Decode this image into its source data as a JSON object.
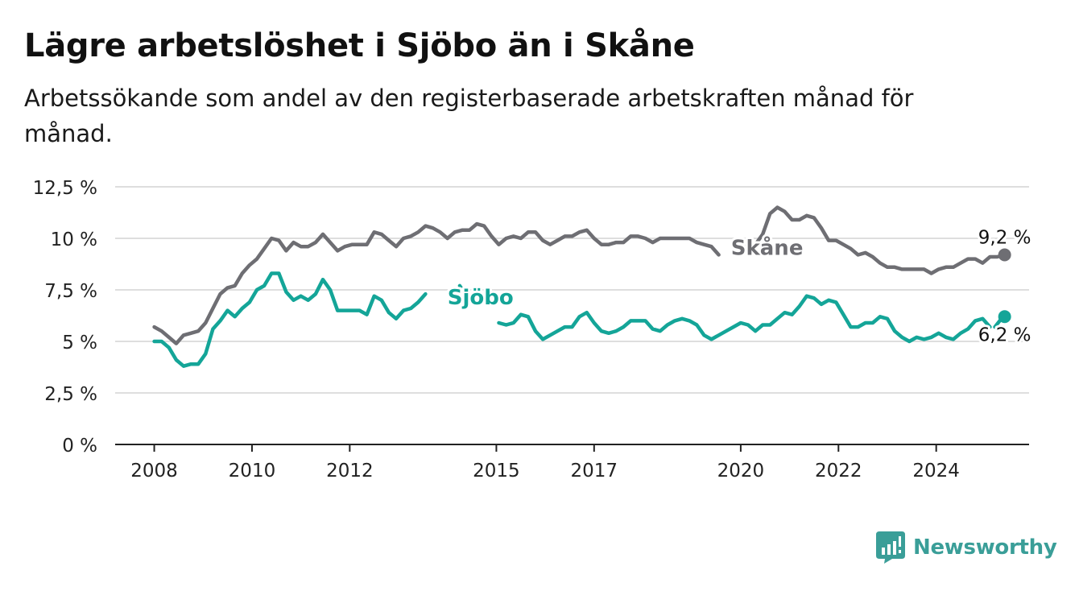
{
  "title": "Lägre arbetslöshet i Sjöbo än i Skåne",
  "subtitle": "Arbetssökande som andel av den registerbaserade arbetskraften månad för månad.",
  "brand": {
    "name": "Newsworthy",
    "icon": "newsworthy-chart-icon",
    "color": "#3a9e98"
  },
  "chart_data": {
    "type": "line",
    "ylim": [
      0,
      12.5
    ],
    "yticks": [
      {
        "value": 0,
        "label": "0 %"
      },
      {
        "value": 2.5,
        "label": "2,5 %"
      },
      {
        "value": 5,
        "label": "5 %"
      },
      {
        "value": 7.5,
        "label": "7,5 %"
      },
      {
        "value": 10,
        "label": "10 %"
      },
      {
        "value": 12.5,
        "label": "12,5 %"
      }
    ],
    "xlim": [
      2007.2,
      2025.9
    ],
    "xticks": [
      {
        "value": 2008,
        "label": "2008"
      },
      {
        "value": 2010,
        "label": "2010"
      },
      {
        "value": 2012,
        "label": "2012"
      },
      {
        "value": 2015,
        "label": "2015"
      },
      {
        "value": 2017,
        "label": "2017"
      },
      {
        "value": 2020,
        "label": "2020"
      },
      {
        "value": 2022,
        "label": "2022"
      },
      {
        "value": 2024,
        "label": "2024"
      }
    ],
    "grid": true,
    "series": [
      {
        "name": "Skåne",
        "color": "#6e6e73",
        "last_label": "9,2 %",
        "points": [
          [
            2008.0,
            5.7
          ],
          [
            2008.15,
            5.5
          ],
          [
            2008.3,
            5.2
          ],
          [
            2008.45,
            4.9
          ],
          [
            2008.6,
            5.3
          ],
          [
            2008.75,
            5.4
          ],
          [
            2008.9,
            5.5
          ],
          [
            2009.05,
            5.9
          ],
          [
            2009.2,
            6.6
          ],
          [
            2009.35,
            7.3
          ],
          [
            2009.5,
            7.6
          ],
          [
            2009.65,
            7.7
          ],
          [
            2009.8,
            8.3
          ],
          [
            2009.95,
            8.7
          ],
          [
            2010.1,
            9.0
          ],
          [
            2010.25,
            9.5
          ],
          [
            2010.4,
            10.0
          ],
          [
            2010.55,
            9.9
          ],
          [
            2010.7,
            9.4
          ],
          [
            2010.85,
            9.8
          ],
          [
            2011.0,
            9.6
          ],
          [
            2011.15,
            9.6
          ],
          [
            2011.3,
            9.8
          ],
          [
            2011.45,
            10.2
          ],
          [
            2011.6,
            9.8
          ],
          [
            2011.75,
            9.4
          ],
          [
            2011.9,
            9.6
          ],
          [
            2012.05,
            9.7
          ],
          [
            2012.2,
            9.7
          ],
          [
            2012.35,
            9.7
          ],
          [
            2012.5,
            10.3
          ],
          [
            2012.65,
            10.2
          ],
          [
            2012.8,
            9.9
          ],
          [
            2012.95,
            9.6
          ],
          [
            2013.1,
            10.0
          ],
          [
            2013.25,
            10.1
          ],
          [
            2013.4,
            10.3
          ],
          [
            2013.55,
            10.6
          ],
          [
            2013.7,
            10.5
          ],
          [
            2013.85,
            10.3
          ],
          [
            2014.0,
            10.0
          ],
          [
            2014.15,
            10.3
          ],
          [
            2014.3,
            10.4
          ],
          [
            2014.45,
            10.4
          ],
          [
            2014.6,
            10.7
          ],
          [
            2014.75,
            10.6
          ],
          [
            2014.9,
            10.1
          ],
          [
            2015.05,
            9.7
          ],
          [
            2015.2,
            10.0
          ],
          [
            2015.35,
            10.1
          ],
          [
            2015.5,
            10.0
          ],
          [
            2015.65,
            10.3
          ],
          [
            2015.8,
            10.3
          ],
          [
            2015.95,
            9.9
          ],
          [
            2016.1,
            9.7
          ],
          [
            2016.25,
            9.9
          ],
          [
            2016.4,
            10.1
          ],
          [
            2016.55,
            10.1
          ],
          [
            2016.7,
            10.3
          ],
          [
            2016.85,
            10.4
          ],
          [
            2017.0,
            10.0
          ],
          [
            2017.15,
            9.7
          ],
          [
            2017.3,
            9.7
          ],
          [
            2017.45,
            9.8
          ],
          [
            2017.6,
            9.8
          ],
          [
            2017.75,
            10.1
          ],
          [
            2017.9,
            10.1
          ],
          [
            2018.05,
            10.0
          ],
          [
            2018.2,
            9.8
          ],
          [
            2018.35,
            10.0
          ],
          [
            2018.5,
            10.0
          ],
          [
            2018.65,
            10.0
          ],
          [
            2018.8,
            10.0
          ],
          [
            2018.95,
            10.0
          ],
          [
            2019.1,
            9.8
          ],
          [
            2019.25,
            9.7
          ],
          [
            2019.4,
            9.6
          ],
          [
            2019.55,
            9.2
          ],
          null,
          [
            2020.0,
            9.7
          ],
          [
            2020.15,
            9.8
          ],
          [
            2020.3,
            9.7
          ],
          [
            2020.45,
            10.2
          ],
          [
            2020.6,
            11.2
          ],
          [
            2020.75,
            11.5
          ],
          [
            2020.9,
            11.3
          ],
          [
            2021.05,
            10.9
          ],
          [
            2021.2,
            10.9
          ],
          [
            2021.35,
            11.1
          ],
          [
            2021.5,
            11.0
          ],
          [
            2021.65,
            10.5
          ],
          [
            2021.8,
            9.9
          ],
          [
            2021.95,
            9.9
          ],
          [
            2022.1,
            9.7
          ],
          [
            2022.25,
            9.5
          ],
          [
            2022.4,
            9.2
          ],
          [
            2022.55,
            9.3
          ],
          [
            2022.7,
            9.1
          ],
          [
            2022.85,
            8.8
          ],
          [
            2023.0,
            8.6
          ],
          [
            2023.15,
            8.6
          ],
          [
            2023.3,
            8.5
          ],
          [
            2023.45,
            8.5
          ],
          [
            2023.6,
            8.5
          ],
          [
            2023.75,
            8.5
          ],
          [
            2023.9,
            8.3
          ],
          [
            2024.05,
            8.5
          ],
          [
            2024.2,
            8.6
          ],
          [
            2024.35,
            8.6
          ],
          [
            2024.5,
            8.8
          ],
          [
            2024.65,
            9.0
          ],
          [
            2024.8,
            9.0
          ],
          [
            2024.95,
            8.8
          ],
          [
            2025.1,
            9.1
          ],
          [
            2025.25,
            9.1
          ],
          [
            2025.4,
            9.2
          ]
        ]
      },
      {
        "name": "Sjöbo",
        "color": "#14a598",
        "last_label": "6,2 %",
        "points": [
          [
            2008.0,
            5.0
          ],
          [
            2008.15,
            5.0
          ],
          [
            2008.3,
            4.7
          ],
          [
            2008.45,
            4.1
          ],
          [
            2008.6,
            3.8
          ],
          [
            2008.75,
            3.9
          ],
          [
            2008.9,
            3.9
          ],
          [
            2009.05,
            4.4
          ],
          [
            2009.2,
            5.6
          ],
          [
            2009.35,
            6.0
          ],
          [
            2009.5,
            6.5
          ],
          [
            2009.65,
            6.2
          ],
          [
            2009.8,
            6.6
          ],
          [
            2009.95,
            6.9
          ],
          [
            2010.1,
            7.5
          ],
          [
            2010.25,
            7.7
          ],
          [
            2010.4,
            8.3
          ],
          [
            2010.55,
            8.3
          ],
          [
            2010.7,
            7.4
          ],
          [
            2010.85,
            7.0
          ],
          [
            2011.0,
            7.2
          ],
          [
            2011.15,
            7.0
          ],
          [
            2011.3,
            7.3
          ],
          [
            2011.45,
            8.0
          ],
          [
            2011.6,
            7.5
          ],
          [
            2011.75,
            6.5
          ],
          [
            2011.9,
            6.5
          ],
          [
            2012.05,
            6.5
          ],
          [
            2012.2,
            6.5
          ],
          [
            2012.35,
            6.3
          ],
          [
            2012.5,
            7.2
          ],
          [
            2012.65,
            7.0
          ],
          [
            2012.8,
            6.4
          ],
          [
            2012.95,
            6.1
          ],
          [
            2013.1,
            6.5
          ],
          [
            2013.25,
            6.6
          ],
          [
            2013.4,
            6.9
          ],
          [
            2013.55,
            7.3
          ],
          null,
          [
            2014.25,
            7.7
          ],
          [
            2014.4,
            7.2
          ],
          null,
          [
            2015.05,
            5.9
          ],
          [
            2015.2,
            5.8
          ],
          [
            2015.35,
            5.9
          ],
          [
            2015.5,
            6.3
          ],
          [
            2015.65,
            6.2
          ],
          [
            2015.8,
            5.5
          ],
          [
            2015.95,
            5.1
          ],
          [
            2016.1,
            5.3
          ],
          [
            2016.25,
            5.5
          ],
          [
            2016.4,
            5.7
          ],
          [
            2016.55,
            5.7
          ],
          [
            2016.7,
            6.2
          ],
          [
            2016.85,
            6.4
          ],
          [
            2017.0,
            5.9
          ],
          [
            2017.15,
            5.5
          ],
          [
            2017.3,
            5.4
          ],
          [
            2017.45,
            5.5
          ],
          [
            2017.6,
            5.7
          ],
          [
            2017.75,
            6.0
          ],
          [
            2017.9,
            6.0
          ],
          [
            2018.05,
            6.0
          ],
          [
            2018.2,
            5.6
          ],
          [
            2018.35,
            5.5
          ],
          [
            2018.5,
            5.8
          ],
          [
            2018.65,
            6.0
          ],
          [
            2018.8,
            6.1
          ],
          [
            2018.95,
            6.0
          ],
          [
            2019.1,
            5.8
          ],
          [
            2019.25,
            5.3
          ],
          [
            2019.4,
            5.1
          ],
          [
            2019.55,
            5.3
          ],
          [
            2019.7,
            5.5
          ],
          [
            2019.85,
            5.7
          ],
          [
            2020.0,
            5.9
          ],
          [
            2020.15,
            5.8
          ],
          [
            2020.3,
            5.5
          ],
          [
            2020.45,
            5.8
          ],
          [
            2020.6,
            5.8
          ],
          [
            2020.75,
            6.1
          ],
          [
            2020.9,
            6.4
          ],
          [
            2021.05,
            6.3
          ],
          [
            2021.2,
            6.7
          ],
          [
            2021.35,
            7.2
          ],
          [
            2021.5,
            7.1
          ],
          [
            2021.65,
            6.8
          ],
          [
            2021.8,
            7.0
          ],
          [
            2021.95,
            6.9
          ],
          [
            2022.1,
            6.3
          ],
          [
            2022.25,
            5.7
          ],
          [
            2022.4,
            5.7
          ],
          [
            2022.55,
            5.9
          ],
          [
            2022.7,
            5.9
          ],
          [
            2022.85,
            6.2
          ],
          [
            2023.0,
            6.1
          ],
          [
            2023.15,
            5.5
          ],
          [
            2023.3,
            5.2
          ],
          [
            2023.45,
            5.0
          ],
          [
            2023.6,
            5.2
          ],
          [
            2023.75,
            5.1
          ],
          [
            2023.9,
            5.2
          ],
          [
            2024.05,
            5.4
          ],
          [
            2024.2,
            5.2
          ],
          [
            2024.35,
            5.1
          ],
          [
            2024.5,
            5.4
          ],
          [
            2024.65,
            5.6
          ],
          [
            2024.8,
            6.0
          ],
          [
            2024.95,
            6.1
          ],
          [
            2025.1,
            5.7
          ],
          null,
          [
            2025.2,
            5.7
          ],
          [
            2025.3,
            6.0
          ],
          [
            2025.4,
            6.2
          ]
        ]
      }
    ],
    "annotations": [
      {
        "text": "Skåne",
        "series": "Skåne",
        "x": 2019.8,
        "y": 9.2
      },
      {
        "text": "Sjöbo",
        "series": "Sjöbo",
        "x": 2014.0,
        "y": 6.8
      }
    ]
  }
}
